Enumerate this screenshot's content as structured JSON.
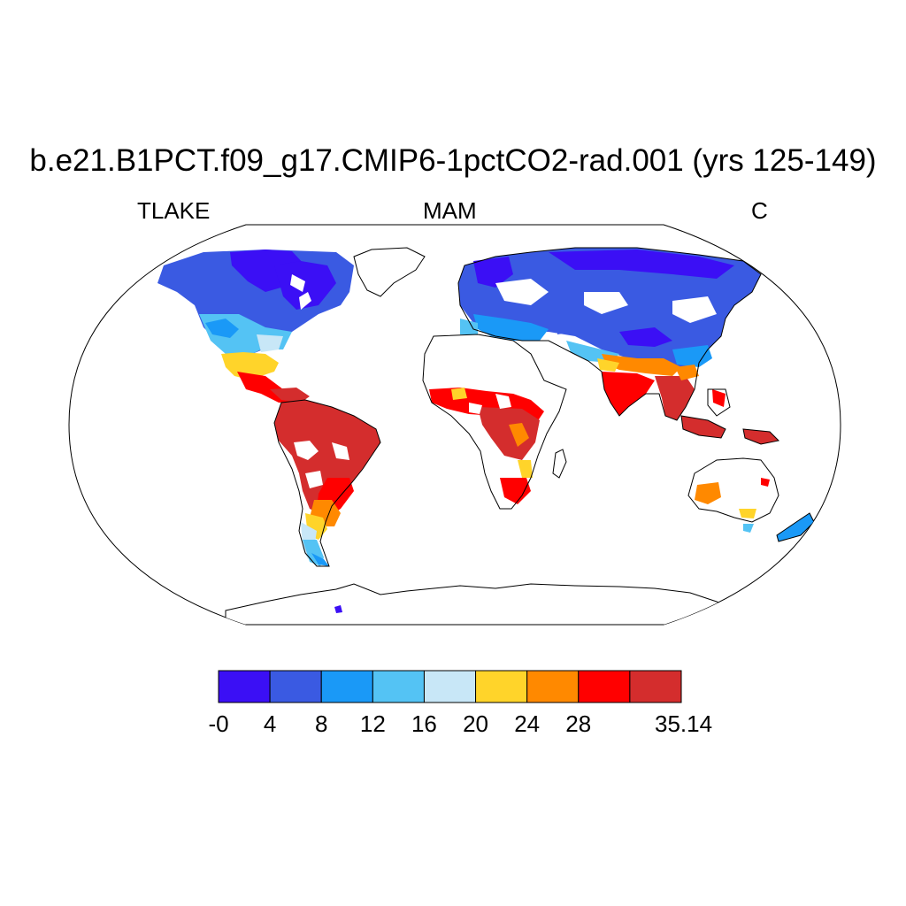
{
  "title": "b.e21.B1PCT.f09_g17.CMIP6-1pctCO2-rad.001 (yrs 125-149)",
  "left_label": "TLAKE",
  "center_label": "MAM",
  "right_label": "C",
  "projection": "robinson",
  "colors": {
    "land_outline": "#000000",
    "background": "#ffffff"
  },
  "colorbar": {
    "colors": [
      "#3b0ff5",
      "#3a5ae2",
      "#1a99f7",
      "#54c3f4",
      "#c8e7f7",
      "#ffd42a",
      "#ff8900",
      "#ff0000",
      "#d42d2d"
    ],
    "labels": [
      "-0",
      "4",
      "8",
      "12",
      "16",
      "20",
      "24",
      "28",
      "35.14"
    ]
  }
}
